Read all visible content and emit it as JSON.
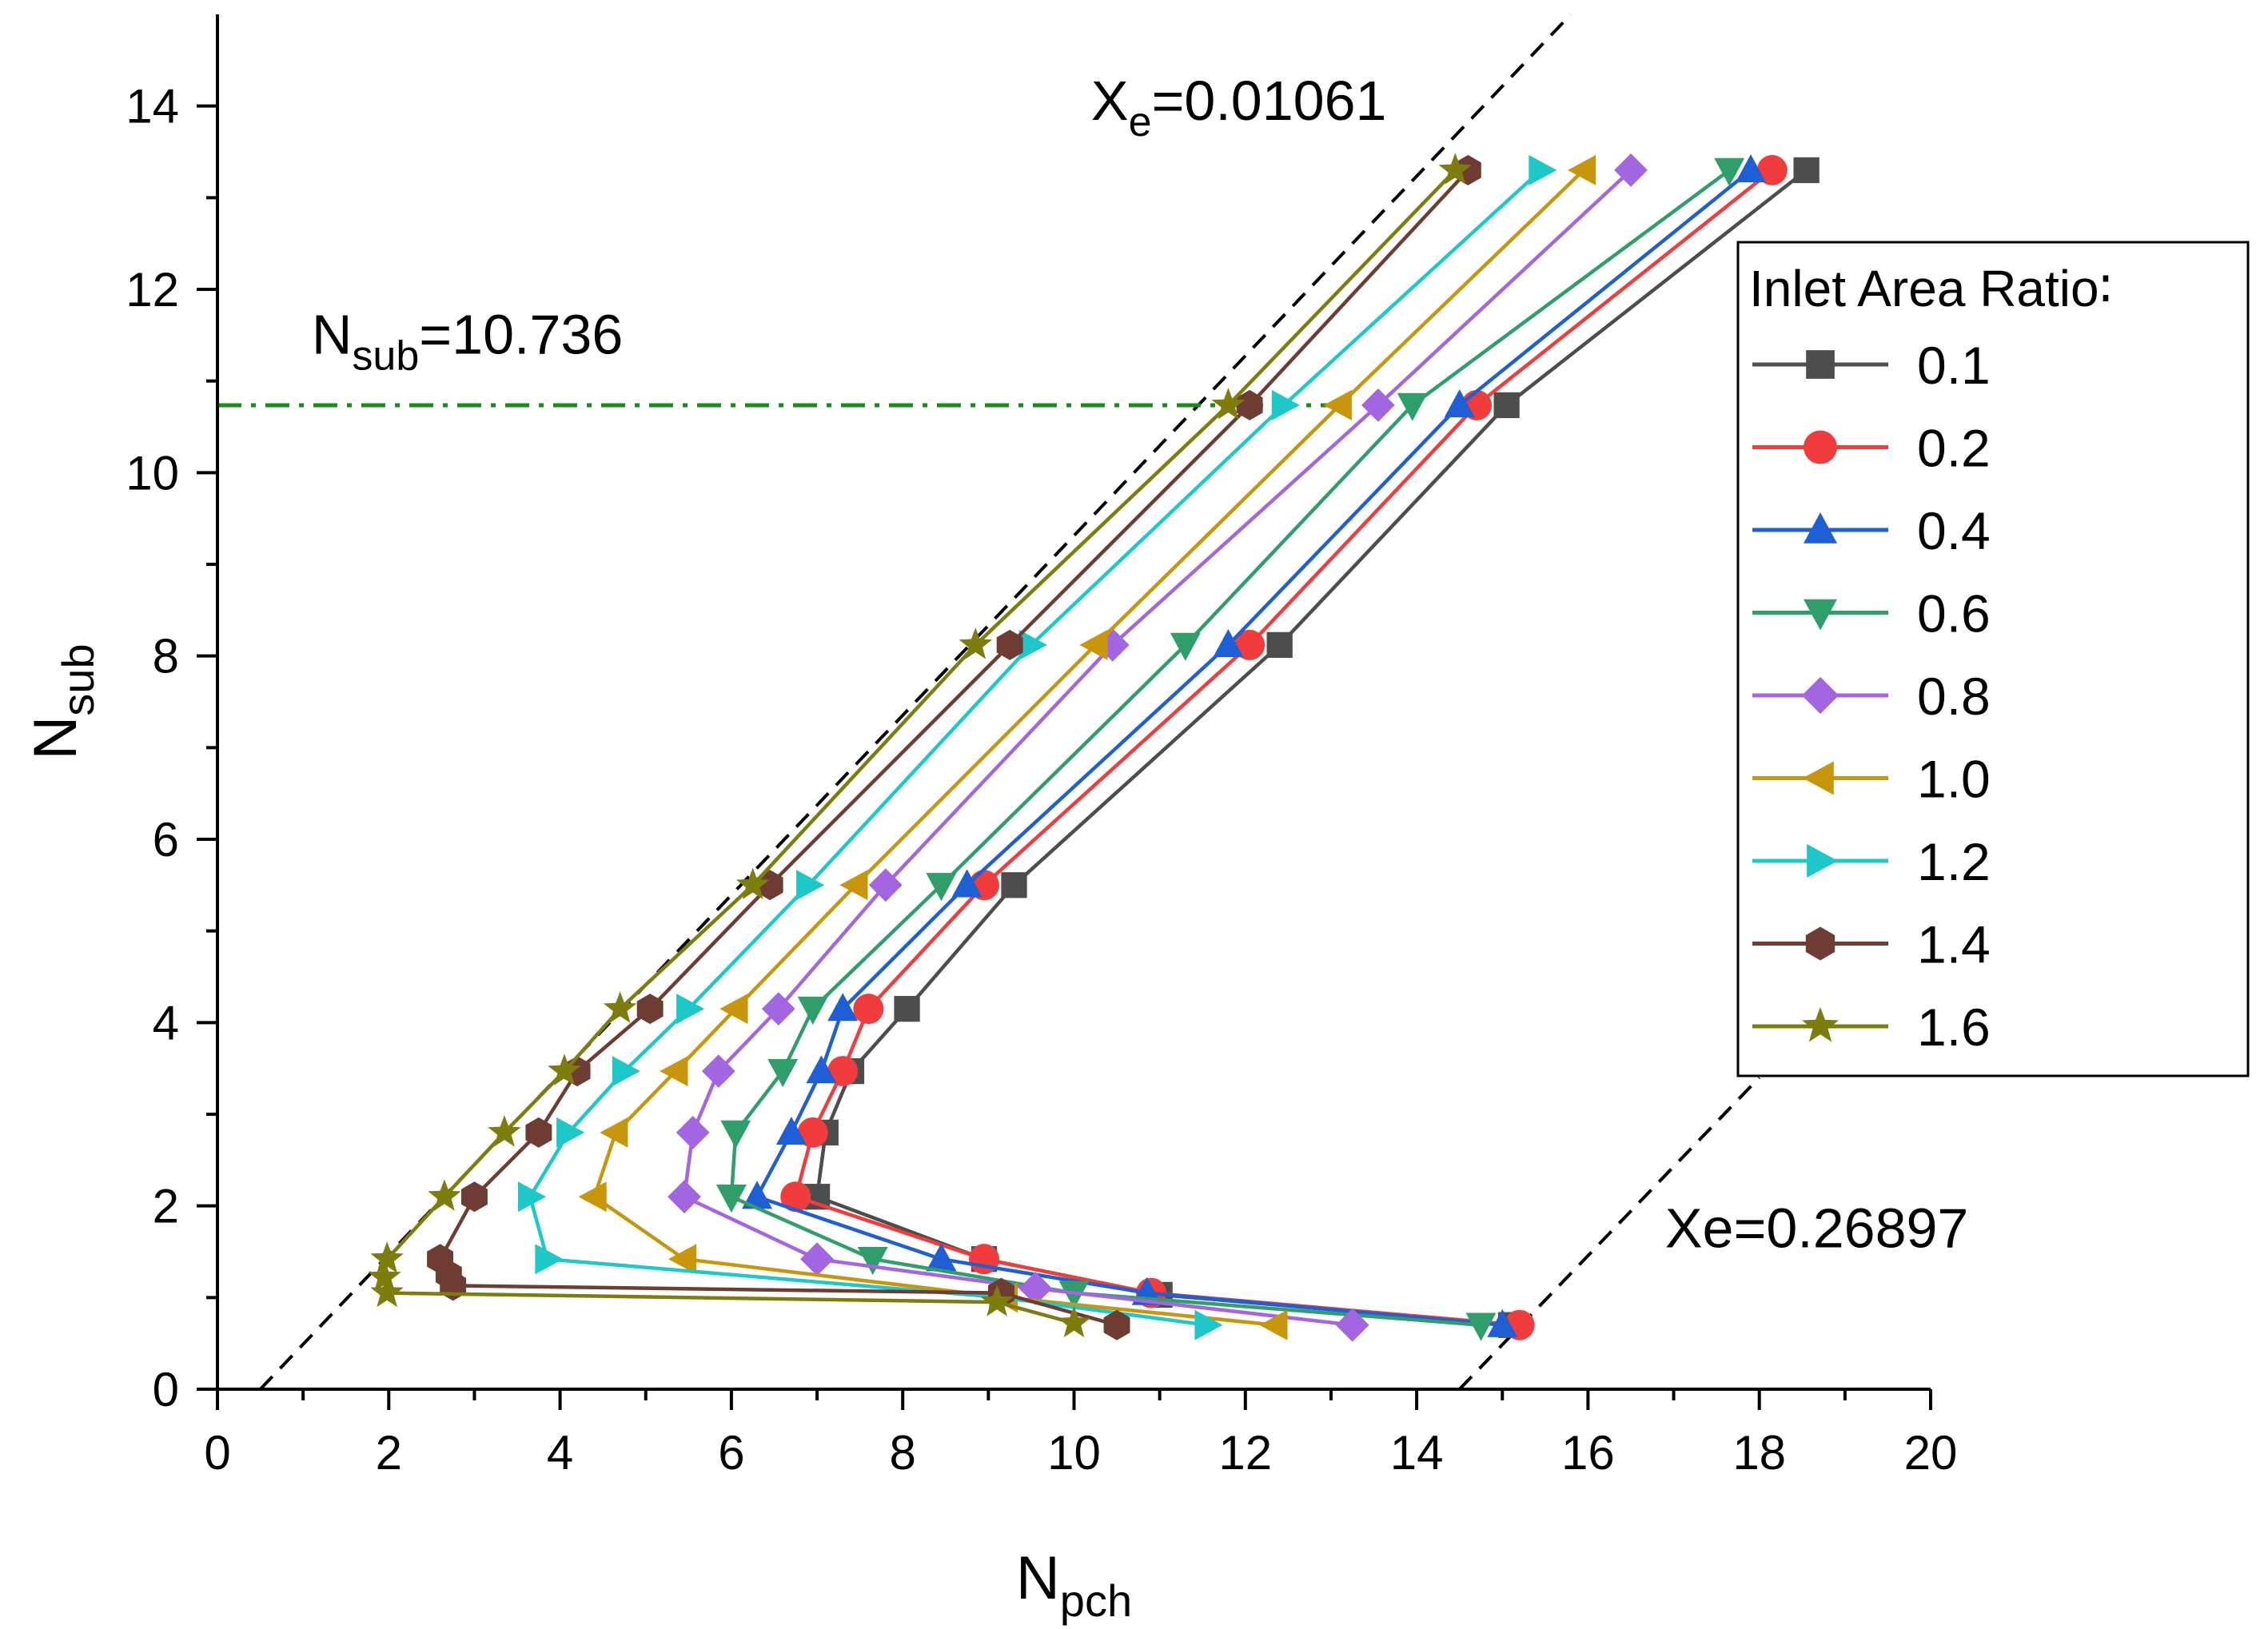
{
  "chart_data": {
    "type": "line",
    "title": "",
    "xlabel_main": "N",
    "xlabel_sub": "pch",
    "ylabel_main": "N",
    "ylabel_sub": "sub",
    "xlim": [
      0,
      20
    ],
    "ylim": [
      0,
      15
    ],
    "x_ticks": [
      0,
      2,
      4,
      6,
      8,
      10,
      12,
      14,
      16,
      18,
      20
    ],
    "y_ticks": [
      0,
      2,
      4,
      6,
      8,
      10,
      12,
      14
    ],
    "grid": false,
    "legend_position": "right",
    "legend_title": "Inlet Area Ratio∶",
    "series": [
      {
        "name": "0.1",
        "color": "#4d4d4d",
        "marker": "square",
        "x": [
          18.55,
          15.05,
          12.4,
          9.3,
          8.05,
          7.4,
          7.1,
          7.0,
          8.95,
          11.0,
          15.1
        ],
        "y": [
          13.3,
          10.736,
          8.12,
          5.5,
          4.15,
          3.47,
          2.8,
          2.1,
          1.42,
          1.03,
          0.7
        ]
      },
      {
        "name": "0.2",
        "color": "#f03c3c",
        "marker": "circle",
        "x": [
          18.15,
          14.7,
          12.05,
          8.95,
          7.6,
          7.3,
          6.95,
          6.75,
          8.95,
          10.9,
          15.2
        ],
        "y": [
          13.3,
          10.736,
          8.12,
          5.5,
          4.15,
          3.47,
          2.8,
          2.1,
          1.42,
          1.05,
          0.7
        ]
      },
      {
        "name": "0.4",
        "color": "#1f5fd6",
        "marker": "triangle-up",
        "x": [
          17.9,
          14.5,
          11.8,
          8.75,
          7.3,
          7.05,
          6.7,
          6.3,
          8.45,
          10.85,
          15.0
        ],
        "y": [
          13.3,
          10.736,
          8.12,
          5.5,
          4.15,
          3.47,
          2.8,
          2.1,
          1.42,
          1.05,
          0.7
        ]
      },
      {
        "name": "0.6",
        "color": "#2f9e6b",
        "marker": "triangle-down",
        "x": [
          17.65,
          13.95,
          11.3,
          8.45,
          6.95,
          6.6,
          6.05,
          6.0,
          7.65,
          10.0,
          14.75
        ],
        "y": [
          13.3,
          10.736,
          8.12,
          5.5,
          4.15,
          3.47,
          2.8,
          2.1,
          1.42,
          1.05,
          0.7
        ]
      },
      {
        "name": "0.8",
        "color": "#a366e0",
        "marker": "diamond",
        "x": [
          16.5,
          13.55,
          10.45,
          7.8,
          6.55,
          5.85,
          5.55,
          5.45,
          7.0,
          9.55,
          13.25
        ],
        "y": [
          13.3,
          10.736,
          8.12,
          5.5,
          4.15,
          3.47,
          2.8,
          2.1,
          1.42,
          1.1,
          0.7
        ]
      },
      {
        "name": "1.0",
        "color": "#c8960c",
        "marker": "triangle-left",
        "x": [
          15.95,
          13.1,
          10.25,
          7.45,
          6.05,
          5.35,
          4.65,
          4.4,
          5.45,
          9.2,
          12.35
        ],
        "y": [
          13.3,
          10.736,
          8.12,
          5.5,
          4.15,
          3.47,
          2.8,
          2.1,
          1.42,
          1.0,
          0.7
        ]
      },
      {
        "name": "1.2",
        "color": "#1ec8c8",
        "marker": "triangle-right",
        "x": [
          15.45,
          12.45,
          9.5,
          6.9,
          5.5,
          4.75,
          4.1,
          3.65,
          3.85,
          9.15,
          11.55
        ],
        "y": [
          13.3,
          10.736,
          8.12,
          5.5,
          4.15,
          3.47,
          2.8,
          2.1,
          1.42,
          1.0,
          0.7
        ]
      },
      {
        "name": "1.4",
        "color": "#6e3c32",
        "marker": "hexagon",
        "x": [
          14.6,
          12.05,
          9.25,
          6.45,
          5.05,
          4.2,
          3.75,
          3.0,
          2.6,
          2.7,
          2.75,
          9.15,
          10.5
        ],
        "y": [
          13.3,
          10.736,
          8.12,
          5.5,
          4.15,
          3.47,
          2.8,
          2.1,
          1.42,
          1.25,
          1.13,
          1.05,
          0.7
        ]
      },
      {
        "name": "1.6",
        "color": "#7d7d0d",
        "marker": "star",
        "x": [
          14.45,
          11.8,
          8.85,
          6.25,
          4.7,
          4.05,
          3.35,
          2.65,
          1.98,
          1.95,
          1.98,
          9.1,
          10.0
        ],
        "y": [
          13.3,
          10.736,
          8.12,
          5.5,
          4.15,
          3.47,
          2.8,
          2.1,
          1.42,
          1.22,
          1.05,
          0.95,
          0.72
        ]
      }
    ],
    "reference_lines": {
      "xe_low": {
        "label_main": "X",
        "label_sub": "e",
        "label_value": "=0.01061",
        "x": [
          0.5,
          15.8
        ],
        "y": [
          0,
          15
        ]
      },
      "xe_high": {
        "label": "Xe=0.26897",
        "x": [
          14.5,
          18.0
        ],
        "y": [
          0,
          3.4
        ]
      },
      "nsub": {
        "label_main": "N",
        "label_sub": "sub",
        "label_value": "=10.736",
        "y": 10.736,
        "x": [
          0,
          13.0
        ],
        "color": "#1a8a1a"
      }
    }
  }
}
